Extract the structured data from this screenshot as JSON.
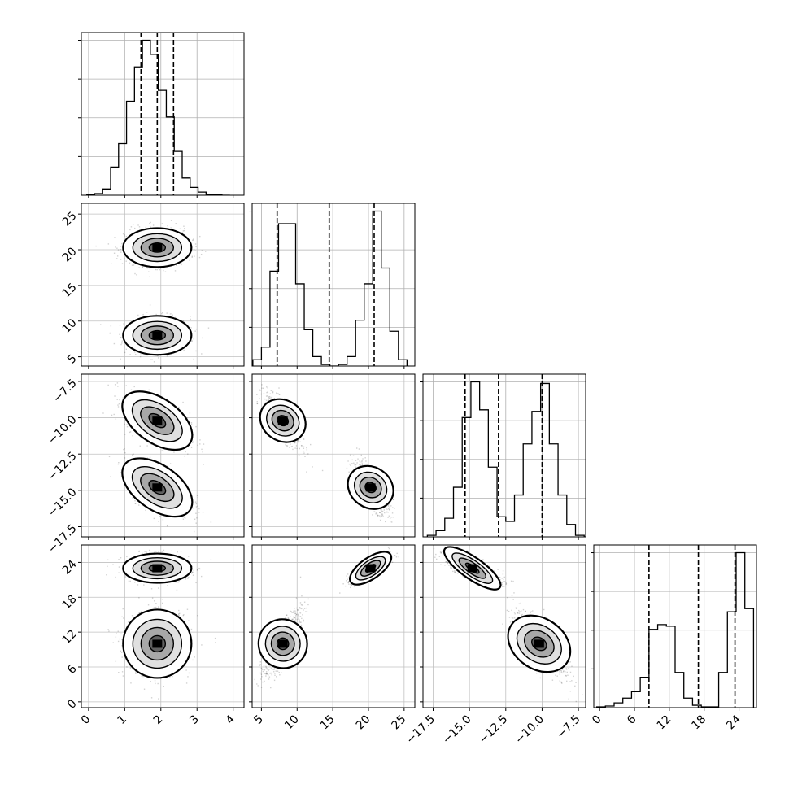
{
  "figure": {
    "type": "corner-plot",
    "n_params": 4
  },
  "chart_data": {
    "type": "corner",
    "params": [
      {
        "range": [
          -0.2,
          4.3
        ],
        "ticks": [
          0,
          1,
          2,
          3,
          4
        ],
        "tick_labels": [
          "0",
          "1",
          "2",
          "3",
          "4"
        ]
      },
      {
        "range": [
          3.7,
          26.5
        ],
        "ticks": [
          5,
          10,
          15,
          20,
          25
        ],
        "tick_labels": [
          "5",
          "10",
          "15",
          "20",
          "25"
        ]
      },
      {
        "range": [
          -18.2,
          -7.0
        ],
        "ticks": [
          -17.5,
          -15.0,
          -12.5,
          -10.0,
          -7.5
        ],
        "tick_labels": [
          "−17.5",
          "−15.0",
          "−12.5",
          "−10.0",
          "−7.5"
        ]
      },
      {
        "range": [
          -1.0,
          27.0
        ],
        "ticks": [
          0,
          6,
          12,
          18,
          24
        ],
        "tick_labels": [
          "0",
          "6",
          "12",
          "18",
          "24"
        ]
      }
    ],
    "quantiles": [
      [
        1.45,
        1.9,
        2.35
      ],
      [
        7.2,
        14.5,
        20.8
      ],
      [
        -15.3,
        -13.0,
        -10.0
      ],
      [
        8.5,
        17.0,
        23.3
      ]
    ],
    "histograms": [
      {
        "bin_edges": [
          -0.05,
          0.17,
          0.39,
          0.61,
          0.83,
          1.05,
          1.27,
          1.49,
          1.71,
          1.93,
          2.15,
          2.37,
          2.59,
          2.81,
          3.03,
          3.25,
          3.47,
          3.69,
          3.91
        ],
        "counts": [
          0.002,
          0.01,
          0.04,
          0.18,
          0.33,
          0.6,
          0.82,
          0.99,
          0.9,
          0.67,
          0.5,
          0.28,
          0.11,
          0.05,
          0.02,
          0.006,
          0.002,
          0.0
        ]
      },
      {
        "bin_edges": [
          3.8,
          5.0,
          6.2,
          7.4,
          8.6,
          9.8,
          11.0,
          12.2,
          13.4,
          14.6,
          15.8,
          17.0,
          18.2,
          19.4,
          20.6,
          21.8,
          23.0,
          24.2,
          25.4
        ],
        "counts": [
          0.04,
          0.12,
          0.6,
          0.9,
          0.9,
          0.52,
          0.23,
          0.06,
          0.01,
          0.0,
          0.01,
          0.06,
          0.29,
          0.52,
          0.98,
          0.62,
          0.22,
          0.04
        ]
      },
      {
        "bin_edges": [
          -17.9,
          -17.3,
          -16.7,
          -16.1,
          -15.5,
          -14.9,
          -14.3,
          -13.7,
          -13.1,
          -12.5,
          -11.9,
          -11.3,
          -10.7,
          -10.1,
          -9.5,
          -8.9,
          -8.3,
          -7.7,
          -7.1
        ],
        "counts": [
          0.01,
          0.04,
          0.12,
          0.32,
          0.77,
          1.0,
          0.82,
          0.45,
          0.13,
          0.1,
          0.27,
          0.6,
          0.81,
          0.99,
          0.6,
          0.27,
          0.08,
          0.01
        ]
      },
      {
        "bin_edges": [
          -0.5,
          1.0,
          2.5,
          4.0,
          5.5,
          7.0,
          8.5,
          10.0,
          11.5,
          13.0,
          14.5,
          16.0,
          17.5,
          19.0,
          20.5,
          22.0,
          23.5,
          25.0,
          26.5
        ],
        "counts": [
          0.005,
          0.01,
          0.03,
          0.06,
          0.1,
          0.19,
          0.49,
          0.52,
          0.51,
          0.22,
          0.06,
          0.015,
          0.005,
          0.005,
          0.22,
          0.6,
          0.97,
          0.62
        ]
      }
    ],
    "clusters": [
      {
        "mean": [
          1.9,
          8.0,
          -10.2,
          10.0
        ],
        "sd": [
          0.45,
          1.3,
          0.9,
          2.8
        ]
      },
      {
        "mean": [
          1.9,
          20.3,
          -14.8,
          23.0
        ],
        "sd": [
          0.45,
          1.3,
          0.9,
          1.2
        ]
      }
    ],
    "title": "",
    "xlabels": [
      "",
      "",
      "",
      ""
    ],
    "grid": true,
    "quantile_line_style": "dashed"
  }
}
